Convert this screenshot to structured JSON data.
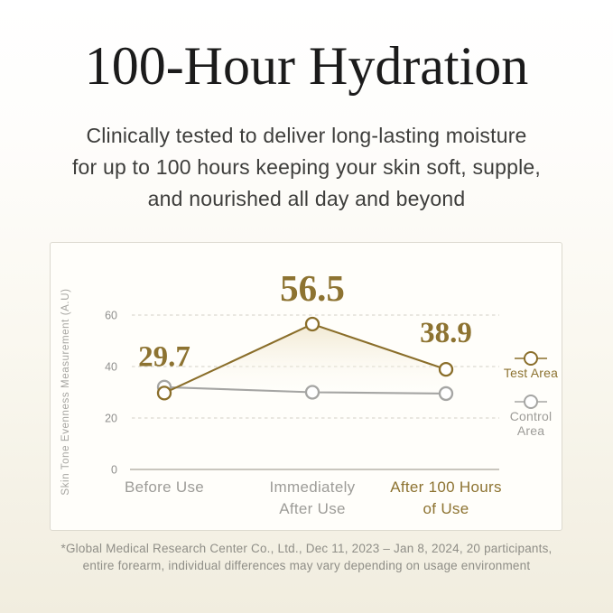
{
  "hero": {
    "title": "100-Hour Hydration",
    "subtitle_lines": [
      "Clinically tested to deliver long-lasting moisture",
      "for up to 100 hours keeping your skin soft, supple,",
      "and nourished all day and beyond"
    ]
  },
  "footnote_lines": [
    "*Global Medical Research Center Co., Ltd., Dec 11, 2023 – Jan 8, 2024, 20 participants,",
    "entire forearm, individual differences may vary depending on usage environment"
  ],
  "colors": {
    "accent_gold": "#8a6e2a",
    "accent_gold_text": "#8d7331",
    "gray_line": "#a5a5a3",
    "gray_text": "#9d9c98",
    "tick_text": "#8f8f8d",
    "axis_title": "#a6a5a1",
    "gridline": "#d3d0c6",
    "axis_baseline": "#b7b4aa",
    "area_fill_top": "#e9dcba",
    "marker_fill": "#ffffff"
  },
  "chart_data": {
    "type": "line",
    "title": "",
    "xlabel": "",
    "ylabel": "Skin Tone Evenness Measurement (A.U)",
    "ylim": [
      0,
      60
    ],
    "yticks": [
      0,
      20,
      40,
      60
    ],
    "grid": true,
    "legend_position": "right",
    "categories": [
      "Before Use",
      "Immediately After Use",
      "After 100 Hours of Use"
    ],
    "category_label_lines": [
      [
        "Before Use"
      ],
      [
        "Immediately",
        "After Use"
      ],
      [
        "After 100 Hours",
        "of Use"
      ]
    ],
    "emphasized_category_index": 2,
    "series": [
      {
        "name": "Test Area",
        "values": [
          29.7,
          56.5,
          38.9
        ],
        "labels": [
          "29.7",
          "56.5",
          "38.9"
        ],
        "color": "#8a6e2a",
        "show_labels": true
      },
      {
        "name": "Control Area",
        "values": [
          32,
          30,
          29.5
        ],
        "color": "#a5a5a3",
        "show_labels": false
      }
    ],
    "legend": [
      {
        "label_lines": [
          "Test Area"
        ],
        "color_text": "#8d7331",
        "color_marker": "#8a6e2a"
      },
      {
        "label_lines": [
          "Control",
          "Area"
        ],
        "color_text": "#9d9c98",
        "color_marker": "#a5a5a3"
      }
    ]
  }
}
